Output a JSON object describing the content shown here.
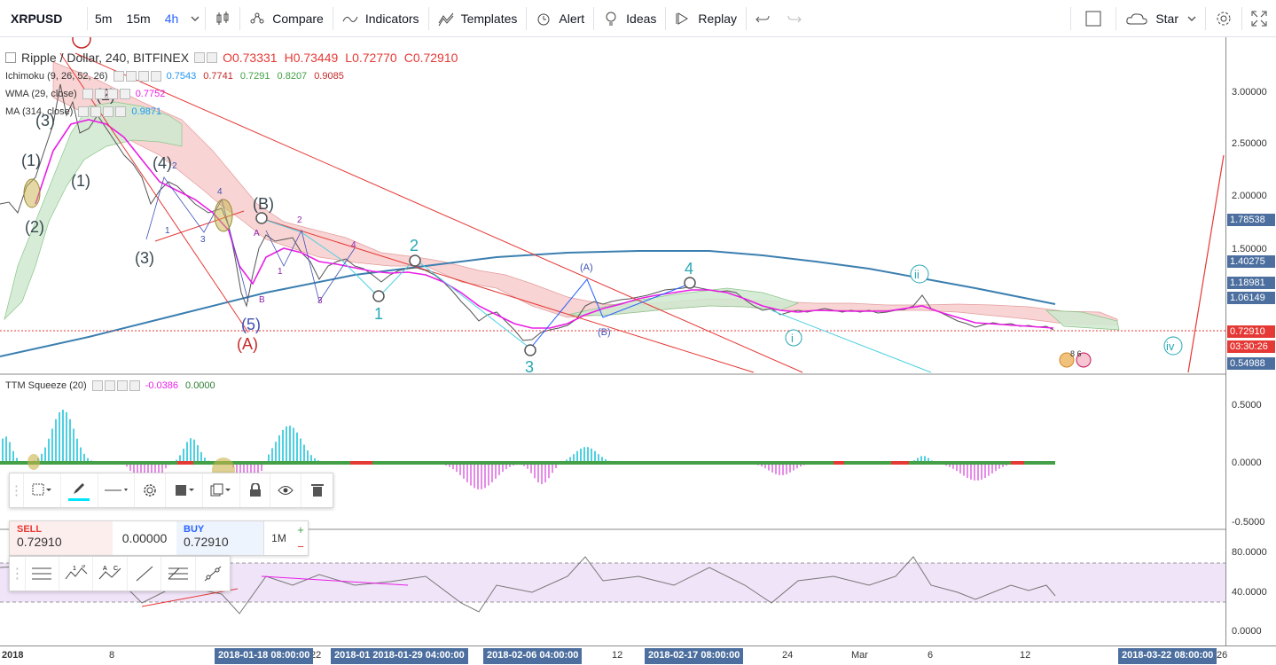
{
  "toolbar": {
    "symbol": "XRPUSD",
    "intervals": [
      "5m",
      "15m",
      "4h"
    ],
    "compare": "Compare",
    "indicators": "Indicators",
    "templates": "Templates",
    "alert": "Alert",
    "ideas": "Ideas",
    "replay": "Replay",
    "star": "Star"
  },
  "main_legend": {
    "title": "Ripple / Dollar, 240, BITFINEX",
    "open": "O0.73331",
    "high": "H0.73449",
    "low": "L0.72770",
    "close": "C0.72910"
  },
  "ichimoku": {
    "name": "Ichimoku (9, 26, 52, 26)",
    "values": [
      "0.7543",
      "0.7741",
      "0.7291",
      "0.8207",
      "0.9085"
    ]
  },
  "wma": {
    "name": "WMA (29, close)",
    "value": "0.7752"
  },
  "ma": {
    "name": "MA (314, close)",
    "value": "0.9871"
  },
  "ttm": {
    "name": "TTM Squeeze (20)",
    "values": [
      "-0.0386",
      "0.0000"
    ]
  },
  "price_axis_main": [
    "3.00000",
    "2.50000",
    "2.00000",
    "1.50000"
  ],
  "price_labels": [
    {
      "text": "1.78538",
      "color": "#4c6f9f"
    },
    {
      "text": "1.40275",
      "color": "#4c6f9f"
    },
    {
      "text": "1.18981",
      "color": "#4c6f9f"
    },
    {
      "text": "1.06149",
      "color": "#4c6f9f"
    },
    {
      "text": "0.72910",
      "color": "#e53935"
    },
    {
      "text": "03:30:26",
      "color": "#e53935"
    },
    {
      "text": "0.54988",
      "color": "#4c6f9f"
    }
  ],
  "price_axis_ttm": [
    "0.5000",
    "0.0000",
    "-0.5000"
  ],
  "price_axis_rsi": [
    "80.0000",
    "40.0000",
    "0.0000"
  ],
  "time_ticks": [
    "2018",
    "8",
    "22",
    "12",
    "24",
    "Mar",
    "6",
    "12",
    "26"
  ],
  "time_labels": [
    "2018-01-18 08:00:00",
    "2018-01 2018-01-29 04:00:00",
    "2018-02-06 04:00:00",
    "2018-02-17 08:00:00",
    "2018-03-22 08:00:00"
  ],
  "wave_labels": {
    "wave_A": "(A)",
    "wave_B": "(B)",
    "wave_5": "(5)",
    "wave_1": "1",
    "wave_2": "2",
    "wave_3": "3",
    "wave_4": "4",
    "sub_A": "(A)",
    "sub_B": "(B)",
    "wave_i": "i",
    "wave_ii": "ii",
    "wave_iv": "iv",
    "w1_paren": "(1)",
    "w2_paren": "(2)",
    "w3_paren": "(3)",
    "w4_paren": "(4)",
    "small_1": "1",
    "small_2": "2",
    "small_3": "3",
    "small_4": "4",
    "small_A": "A",
    "small_B": "B"
  },
  "events": {
    "badge": "8 6"
  },
  "trade": {
    "sell_label": "SELL",
    "sell_price": "0.72910",
    "spread": "0.00000",
    "buy_label": "BUY",
    "buy_price": "0.72910",
    "qty": "1M",
    "plus": "+",
    "minus": "−"
  },
  "colors": {
    "accent": "#2962ff",
    "bear": "#e53935",
    "bull": "#26a69a",
    "ma_blue": "#3b7fb0",
    "wma": "#e91ee6",
    "cloud_red": "#f6c6c6",
    "cloud_green": "#cfe9cf",
    "wave_teal": "#26a7b4",
    "rsi_band": "#ead8f5"
  }
}
